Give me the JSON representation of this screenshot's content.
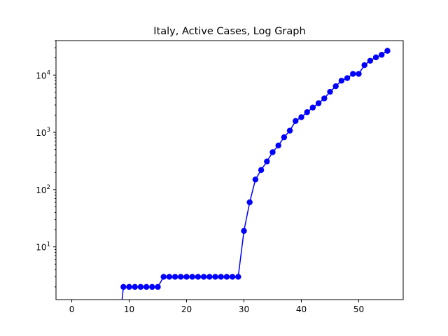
{
  "chart_data": {
    "type": "line",
    "title": "Italy, Active Cases, Log Graph",
    "xlabel": "",
    "ylabel": "",
    "yscale": "log",
    "xlim": [
      -2.75,
      57.75
    ],
    "ylim": [
      1.2,
      40000
    ],
    "grid": false,
    "legend": "none",
    "x_ticks": [
      0,
      10,
      20,
      30,
      40,
      50
    ],
    "y_ticks": [
      {
        "value": 10,
        "base": "10",
        "exp": "1"
      },
      {
        "value": 100,
        "base": "10",
        "exp": "2"
      },
      {
        "value": 1000,
        "base": "10",
        "exp": "3"
      },
      {
        "value": 10000,
        "base": "10",
        "exp": "4"
      }
    ],
    "series": [
      {
        "color": "#0000ff",
        "marker": "circle",
        "x": [
          0,
          1,
          2,
          3,
          4,
          5,
          6,
          7,
          8,
          9,
          10,
          11,
          12,
          13,
          14,
          15,
          16,
          17,
          18,
          19,
          20,
          21,
          22,
          23,
          24,
          25,
          26,
          27,
          28,
          29,
          30,
          31,
          32,
          33,
          34,
          35,
          36,
          37,
          38,
          39,
          40,
          41,
          42,
          43,
          44,
          45,
          46,
          47,
          48,
          49,
          50,
          51,
          52,
          53,
          54,
          55
        ],
        "values": [
          0,
          0,
          0,
          0,
          0,
          0,
          0,
          0,
          0,
          2,
          2,
          2,
          2,
          2,
          2,
          2,
          3,
          3,
          3,
          3,
          3,
          3,
          3,
          3,
          3,
          3,
          3,
          3,
          3,
          3,
          19,
          60,
          150,
          220,
          310,
          450,
          590,
          820,
          1070,
          1580,
          1840,
          2250,
          2710,
          3220,
          3910,
          5100,
          6390,
          7980,
          8860,
          10500,
          10500,
          14900,
          17800,
          20400,
          22600,
          26500
        ]
      }
    ]
  }
}
